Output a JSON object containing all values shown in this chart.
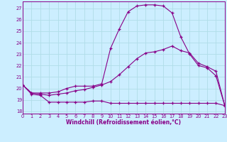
{
  "background_color": "#cceeff",
  "grid_color": "#b0dde8",
  "line_color": "#880088",
  "marker": "+",
  "xlabel": "Windchill (Refroidissement éolien,°C)",
  "yticks": [
    18,
    19,
    20,
    21,
    22,
    23,
    24,
    25,
    26,
    27
  ],
  "xticks": [
    0,
    1,
    2,
    3,
    4,
    5,
    6,
    7,
    8,
    9,
    10,
    11,
    12,
    13,
    14,
    15,
    16,
    17,
    18,
    19,
    20,
    21,
    22,
    23
  ],
  "ylim": [
    17.8,
    27.6
  ],
  "xlim": [
    0,
    23
  ],
  "line1_x": [
    0,
    1,
    2,
    3,
    4,
    5,
    6,
    7,
    8,
    9,
    10,
    11,
    12,
    13,
    14,
    15,
    16,
    17,
    18,
    19,
    20,
    21,
    22,
    23
  ],
  "line1_y": [
    20.3,
    19.5,
    19.4,
    18.8,
    18.8,
    18.8,
    18.8,
    18.8,
    18.9,
    18.9,
    18.7,
    18.7,
    18.7,
    18.7,
    18.7,
    18.7,
    18.7,
    18.7,
    18.7,
    18.7,
    18.7,
    18.7,
    18.7,
    18.5
  ],
  "line2_x": [
    0,
    1,
    2,
    3,
    4,
    5,
    6,
    7,
    8,
    9,
    10,
    11,
    12,
    13,
    14,
    15,
    16,
    17,
    18,
    19,
    20,
    21,
    22,
    23
  ],
  "line2_y": [
    20.3,
    19.6,
    19.5,
    19.4,
    19.5,
    19.6,
    19.8,
    19.9,
    20.1,
    20.3,
    20.6,
    21.2,
    21.9,
    22.6,
    23.1,
    23.2,
    23.4,
    23.7,
    23.3,
    23.1,
    22.2,
    21.9,
    21.5,
    18.5
  ],
  "line3_x": [
    0,
    1,
    2,
    3,
    4,
    5,
    6,
    7,
    8,
    9,
    10,
    11,
    12,
    13,
    14,
    15,
    16,
    17,
    18,
    19,
    20,
    21,
    22,
    23
  ],
  "line3_y": [
    20.3,
    19.6,
    19.6,
    19.6,
    19.7,
    20.0,
    20.2,
    20.2,
    20.2,
    20.4,
    23.5,
    25.2,
    26.7,
    27.2,
    27.3,
    27.3,
    27.2,
    26.6,
    24.5,
    23.0,
    22.0,
    21.8,
    21.1,
    18.5
  ]
}
